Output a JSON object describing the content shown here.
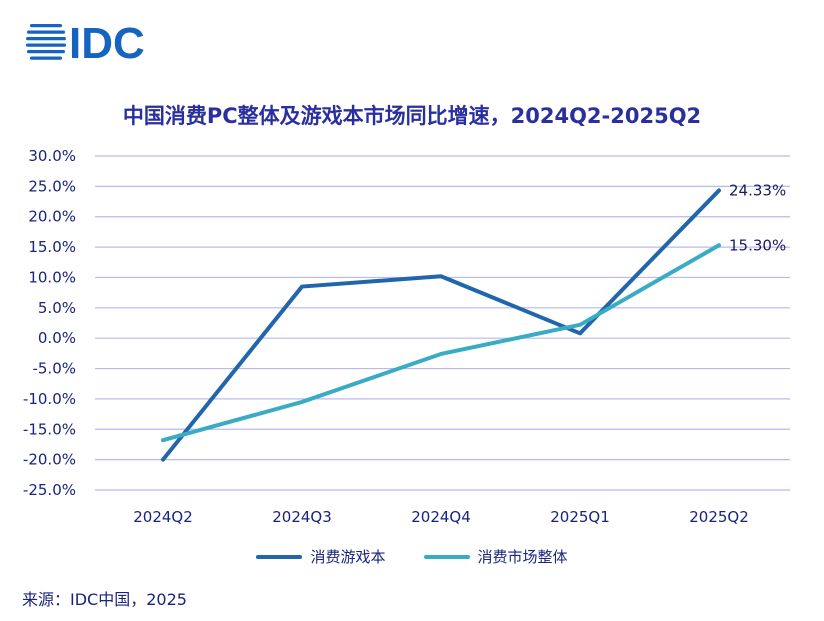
{
  "logo_text": "IDC",
  "chart_data": {
    "type": "line",
    "title": "中国消费PC整体及游戏本市场同比增速，2024Q2-2025Q2",
    "categories": [
      "2024Q2",
      "2024Q3",
      "2024Q4",
      "2025Q1",
      "2025Q2"
    ],
    "series": [
      {
        "name": "消费游戏本",
        "color": "#2166ac",
        "values": [
          -20.0,
          8.5,
          10.2,
          0.8,
          24.33
        ],
        "end_label": "24.33%"
      },
      {
        "name": "消费市场整体",
        "color": "#3aabc4",
        "values": [
          -16.8,
          -10.5,
          -2.6,
          2.2,
          15.3
        ],
        "end_label": "15.30%"
      }
    ],
    "ylim": [
      -25,
      30
    ],
    "yticks": [
      30,
      25,
      20,
      15,
      10,
      5,
      0,
      -5,
      -10,
      -15,
      -20,
      -25
    ],
    "ytick_labels": [
      "30.0%",
      "25.0%",
      "20.0%",
      "15.0%",
      "10.0%",
      "5.0%",
      "0.0%",
      "-5.0%",
      "-10.0%",
      "-15.0%",
      "-20.0%",
      "-25.0%"
    ],
    "grid": true,
    "legend_position": "bottom"
  },
  "source": "来源：IDC中国，2025",
  "colors": {
    "title": "#2a2f9e",
    "axis_text": "#1a237e",
    "grid": "#b9b9ee",
    "logo": "#1565c0"
  }
}
